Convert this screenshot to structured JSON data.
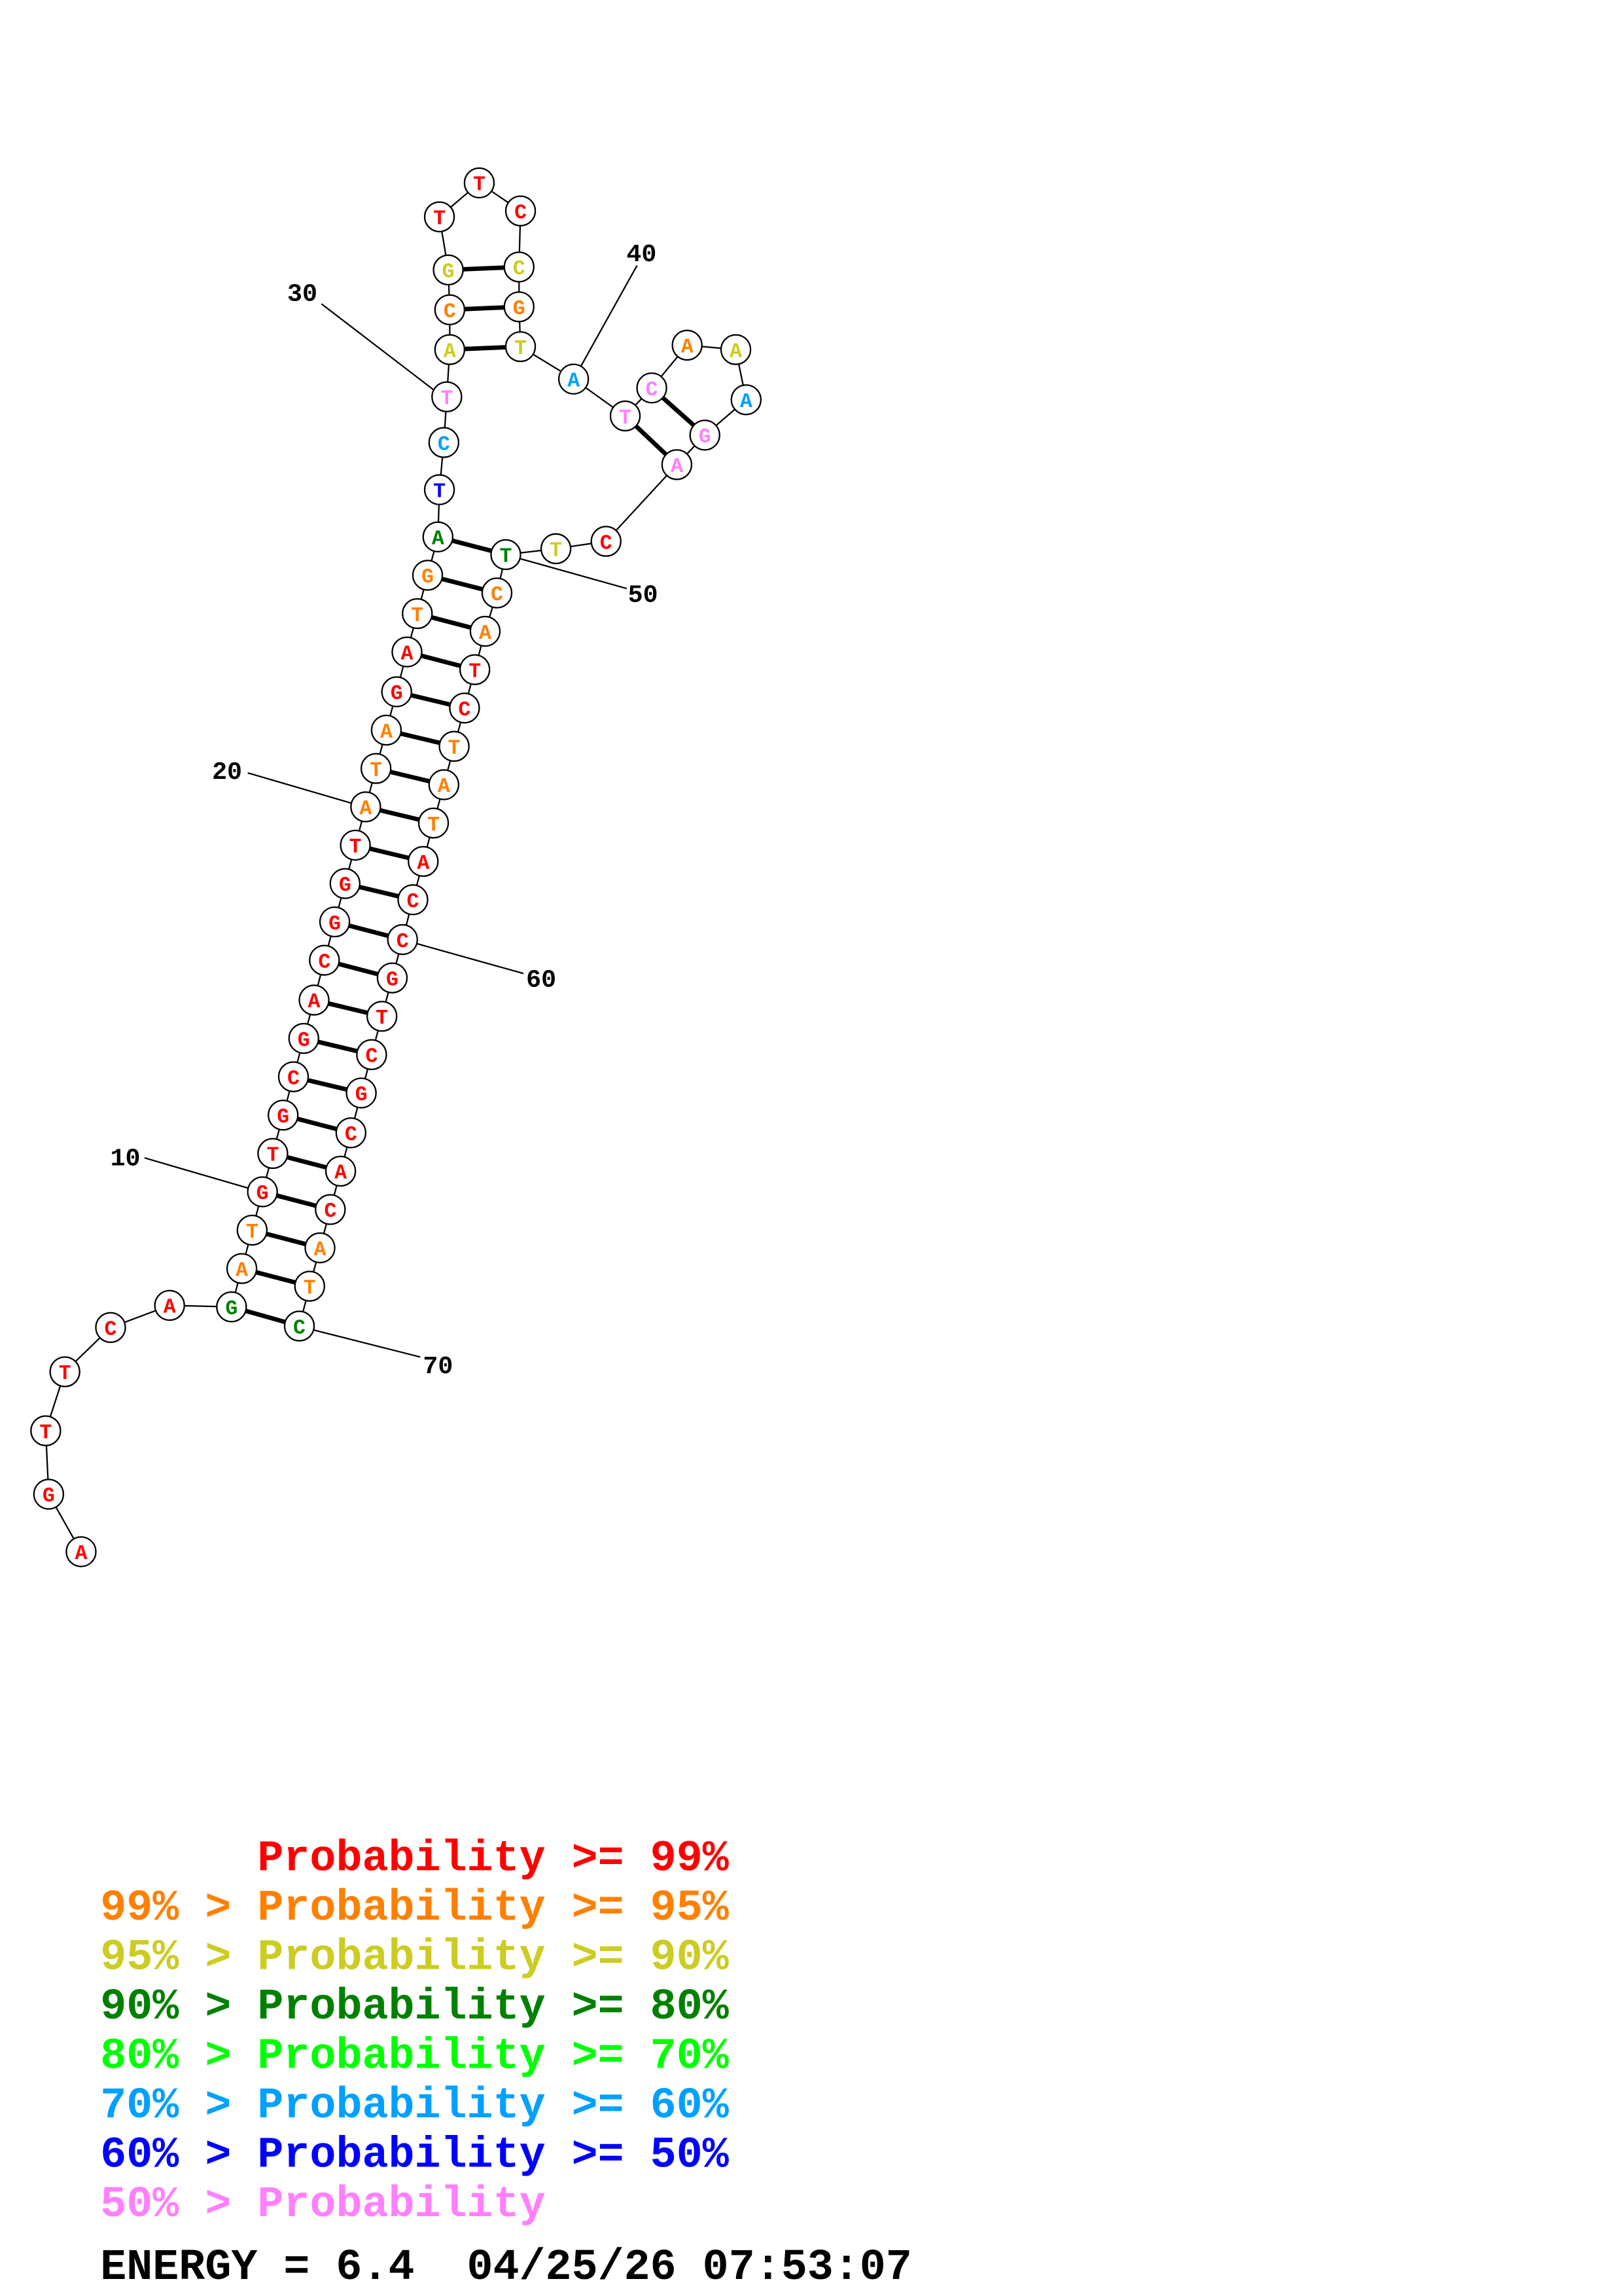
{
  "bases": [
    {
      "letter": "A",
      "color": "#ff0000"
    },
    {
      "letter": "G",
      "color": "#ff0000"
    },
    {
      "letter": "T",
      "color": "#ff0000"
    },
    {
      "letter": "T",
      "color": "#ff0000"
    },
    {
      "letter": "C",
      "color": "#ff0000"
    },
    {
      "letter": "A",
      "color": "#ff0000"
    },
    {
      "letter": "G",
      "color": "#008000"
    },
    {
      "letter": "A",
      "color": "#ff8000"
    },
    {
      "letter": "T",
      "color": "#ff8000"
    },
    {
      "letter": "G",
      "color": "#ff0000"
    },
    {
      "letter": "T",
      "color": "#ff0000"
    },
    {
      "letter": "G",
      "color": "#ff0000"
    },
    {
      "letter": "C",
      "color": "#ff0000"
    },
    {
      "letter": "G",
      "color": "#ff0000"
    },
    {
      "letter": "A",
      "color": "#ff0000"
    },
    {
      "letter": "C",
      "color": "#ff0000"
    },
    {
      "letter": "G",
      "color": "#ff0000"
    },
    {
      "letter": "G",
      "color": "#ff0000"
    },
    {
      "letter": "T",
      "color": "#ff0000"
    },
    {
      "letter": "A",
      "color": "#ff8000"
    },
    {
      "letter": "T",
      "color": "#ff8000"
    },
    {
      "letter": "A",
      "color": "#ff8000"
    },
    {
      "letter": "G",
      "color": "#ff0000"
    },
    {
      "letter": "A",
      "color": "#ff0000"
    },
    {
      "letter": "T",
      "color": "#ff8000"
    },
    {
      "letter": "G",
      "color": "#ff8000"
    },
    {
      "letter": "A",
      "color": "#008000"
    },
    {
      "letter": "T",
      "color": "#0000ff"
    },
    {
      "letter": "C",
      "color": "#00a0ff"
    },
    {
      "letter": "T",
      "color": "#ff80ff"
    },
    {
      "letter": "A",
      "color": "#cccc22"
    },
    {
      "letter": "C",
      "color": "#ff8000"
    },
    {
      "letter": "G",
      "color": "#cccc22"
    },
    {
      "letter": "T",
      "color": "#ff0000"
    },
    {
      "letter": "T",
      "color": "#ff0000"
    },
    {
      "letter": "C",
      "color": "#ff0000"
    },
    {
      "letter": "C",
      "color": "#cccc22"
    },
    {
      "letter": "G",
      "color": "#ff8000"
    },
    {
      "letter": "T",
      "color": "#cccc22"
    },
    {
      "letter": "A",
      "color": "#00a0ff"
    },
    {
      "letter": "T",
      "color": "#ff80ff"
    },
    {
      "letter": "C",
      "color": "#ff80ff"
    },
    {
      "letter": "A",
      "color": "#ff8000"
    },
    {
      "letter": "A",
      "color": "#cccc22"
    },
    {
      "letter": "A",
      "color": "#00a0ff"
    },
    {
      "letter": "G",
      "color": "#ff80ff"
    },
    {
      "letter": "A",
      "color": "#ff80ff"
    },
    {
      "letter": "C",
      "color": "#ff0000"
    },
    {
      "letter": "T",
      "color": "#cccc22"
    },
    {
      "letter": "T",
      "color": "#008000"
    },
    {
      "letter": "C",
      "color": "#ff8000"
    },
    {
      "letter": "A",
      "color": "#ff8000"
    },
    {
      "letter": "T",
      "color": "#ff0000"
    },
    {
      "letter": "C",
      "color": "#ff0000"
    },
    {
      "letter": "T",
      "color": "#ff8000"
    },
    {
      "letter": "A",
      "color": "#ff8000"
    },
    {
      "letter": "T",
      "color": "#ff8000"
    },
    {
      "letter": "A",
      "color": "#ff0000"
    },
    {
      "letter": "C",
      "color": "#ff0000"
    },
    {
      "letter": "C",
      "color": "#ff0000"
    },
    {
      "letter": "G",
      "color": "#ff0000"
    },
    {
      "letter": "T",
      "color": "#ff0000"
    },
    {
      "letter": "C",
      "color": "#ff0000"
    },
    {
      "letter": "G",
      "color": "#ff0000"
    },
    {
      "letter": "C",
      "color": "#ff0000"
    },
    {
      "letter": "A",
      "color": "#ff0000"
    },
    {
      "letter": "C",
      "color": "#ff0000"
    },
    {
      "letter": "A",
      "color": "#ff8000"
    },
    {
      "letter": "T",
      "color": "#ff8000"
    },
    {
      "letter": "C",
      "color": "#008000"
    }
  ],
  "position_labels": [
    "10",
    "20",
    "30",
    "40",
    "50",
    "60",
    "70"
  ],
  "legend": [
    {
      "prefix": "",
      "text": "Probability >= 99%",
      "color": "#ff0000"
    },
    {
      "prefix": "99% >",
      "text": "Probability >= 95%",
      "color": "#ff8000"
    },
    {
      "prefix": "95% >",
      "text": "Probability >= 90%",
      "color": "#cccc22"
    },
    {
      "prefix": "90% >",
      "text": "Probability >= 80%",
      "color": "#008000"
    },
    {
      "prefix": "80% >",
      "text": "Probability >= 70%",
      "color": "#00ff00"
    },
    {
      "prefix": "70% >",
      "text": "Probability >= 60%",
      "color": "#00a0ff"
    },
    {
      "prefix": "60% >",
      "text": "Probability >= 50%",
      "color": "#0000ff"
    },
    {
      "prefix": "50% >",
      "text": "Probability",
      "color": "#ff80ff"
    }
  ],
  "footer": "ENERGY = 6.4  04/25/26 07:53:07"
}
